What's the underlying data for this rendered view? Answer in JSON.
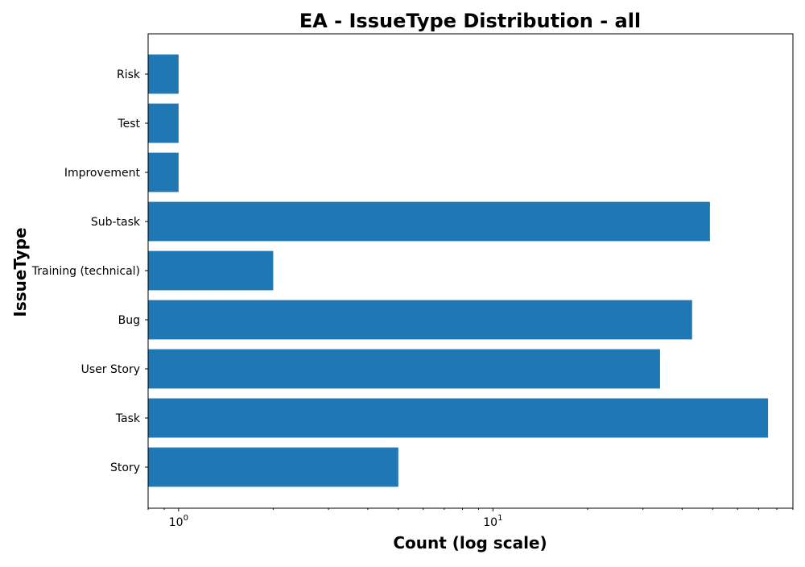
{
  "chart_data": {
    "type": "bar",
    "orientation": "horizontal",
    "title": "EA - IssueType Distribution - all",
    "xlabel": "Count (log scale)",
    "ylabel": "IssueType",
    "x_scale": "log",
    "xlim": [
      0.8,
      90
    ],
    "x_ticks_major": [
      {
        "value": 1,
        "base": "10",
        "exp": "0"
      },
      {
        "value": 10,
        "base": "10",
        "exp": "1"
      }
    ],
    "categories": [
      "Story",
      "Task",
      "User Story",
      "Bug",
      "Training (technical)",
      "Sub-task",
      "Improvement",
      "Test",
      "Risk"
    ],
    "values": [
      5,
      75,
      34,
      43,
      2,
      49,
      1,
      1,
      1
    ],
    "bar_color": "#1f77b4",
    "grid": false
  }
}
